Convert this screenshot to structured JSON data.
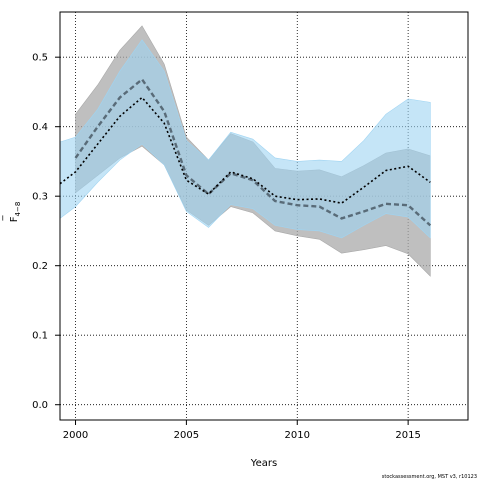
{
  "chart_data": {
    "type": "area",
    "xlabel": "Years",
    "ylabel": "F",
    "ylabel_bar": "‾",
    "ylabel_sub": "4−8",
    "xlim": [
      1999.3,
      2017.7
    ],
    "ylim": [
      -0.022,
      0.565
    ],
    "xticks": [
      2000,
      2005,
      2010,
      2015
    ],
    "yticks": [
      0.0,
      0.1,
      0.2,
      0.3,
      0.4,
      0.5
    ],
    "ytick_labels": [
      "0.0",
      "0.1",
      "0.2",
      "0.3",
      "0.4",
      "0.5"
    ],
    "grid": true,
    "footer_note": "stockassessment.org, MST v3, r10123",
    "series": [
      {
        "role": "band",
        "color": "#a9a9a9",
        "x": [
          2000,
          2001,
          2002,
          2003,
          2004,
          2005,
          2006,
          2007,
          2008,
          2009,
          2010,
          2011,
          2012,
          2013,
          2014,
          2015,
          2016
        ],
        "lower": [
          0.305,
          0.33,
          0.355,
          0.372,
          0.345,
          0.28,
          0.258,
          0.285,
          0.276,
          0.25,
          0.243,
          0.238,
          0.218,
          0.223,
          0.229,
          0.217,
          0.185
        ],
        "upper": [
          0.418,
          0.46,
          0.51,
          0.545,
          0.49,
          0.385,
          0.352,
          0.39,
          0.378,
          0.34,
          0.336,
          0.338,
          0.328,
          0.344,
          0.362,
          0.368,
          0.358
        ]
      },
      {
        "role": "band",
        "color": "#9fd4f2",
        "x": [
          1999.3,
          2000,
          2001,
          2002,
          2003,
          2004,
          2005,
          2006,
          2007,
          2008,
          2009,
          2010,
          2011,
          2012,
          2013,
          2014,
          2015,
          2016
        ],
        "lower": [
          0.268,
          0.285,
          0.32,
          0.352,
          0.375,
          0.345,
          0.278,
          0.255,
          0.288,
          0.282,
          0.258,
          0.252,
          0.25,
          0.24,
          0.258,
          0.275,
          0.27,
          0.24
        ],
        "upper": [
          0.378,
          0.385,
          0.425,
          0.48,
          0.525,
          0.48,
          0.38,
          0.352,
          0.392,
          0.382,
          0.355,
          0.35,
          0.352,
          0.35,
          0.38,
          0.418,
          0.44,
          0.435
        ]
      },
      {
        "role": "line",
        "style": "solid",
        "color": "#4a5a66",
        "x": [
          2000,
          2001,
          2002,
          2003,
          2004,
          2005,
          2006,
          2007,
          2008,
          2009,
          2010,
          2011,
          2012,
          2013,
          2014,
          2015,
          2016
        ],
        "y": [
          0.355,
          0.4,
          0.442,
          0.468,
          0.422,
          0.33,
          0.303,
          0.333,
          0.323,
          0.293,
          0.287,
          0.285,
          0.268,
          0.278,
          0.289,
          0.287,
          0.258
        ]
      },
      {
        "role": "line",
        "style": "dotted",
        "color": "#000000",
        "x": [
          1999.3,
          2000,
          2001,
          2002,
          2003,
          2004,
          2005,
          2006,
          2007,
          2008,
          2009,
          2010,
          2011,
          2012,
          2013,
          2014,
          2015,
          2016
        ],
        "y": [
          0.318,
          0.335,
          0.375,
          0.415,
          0.442,
          0.405,
          0.323,
          0.303,
          0.335,
          0.325,
          0.3,
          0.295,
          0.296,
          0.29,
          0.313,
          0.337,
          0.343,
          0.32
        ]
      }
    ]
  }
}
